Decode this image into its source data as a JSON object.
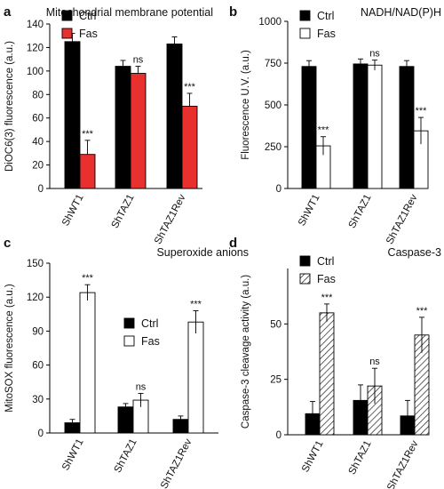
{
  "chart_data": [
    {
      "type": "bar",
      "panel": "a",
      "title": "Mitochondrial membrane potential",
      "ylabel": "DiOC6(3) fluorescence (a.u.)",
      "xlabel": "",
      "ylim": [
        0,
        140
      ],
      "yticks": [
        0,
        20,
        40,
        60,
        80,
        100,
        120,
        140
      ],
      "grid": false,
      "legend_position": "top-left",
      "categories": [
        "ShWT1",
        "ShTAZ1",
        "ShTAZ1Rev"
      ],
      "series": [
        {
          "name": "Ctrl",
          "color": "#000000",
          "pattern": "solid",
          "values": [
            125,
            104,
            123
          ],
          "errors": [
            7,
            5,
            6
          ]
        },
        {
          "name": "Fas",
          "color": "#e8312e",
          "pattern": "solid",
          "values": [
            29,
            98,
            70
          ],
          "errors": [
            12,
            6,
            11
          ]
        }
      ],
      "annotations": [
        {
          "category": "ShWT1",
          "series": "Fas",
          "text": "***"
        },
        {
          "category": "ShTAZ1",
          "series": "Fas",
          "text": "ns"
        },
        {
          "category": "ShTAZ1Rev",
          "series": "Fas",
          "text": "***"
        }
      ]
    },
    {
      "type": "bar",
      "panel": "b",
      "title": "NADH/NAD(P)H",
      "ylabel": "Fluorescence U.V. (a.u.)",
      "xlabel": "",
      "ylim": [
        0,
        1000
      ],
      "yticks": [
        0,
        250,
        500,
        750,
        1000
      ],
      "grid": false,
      "legend_position": "top-left",
      "categories": [
        "ShWT1",
        "ShTAZ1",
        "ShTAZ1Rev"
      ],
      "series": [
        {
          "name": "Ctrl",
          "color": "#000000",
          "pattern": "solid",
          "values": [
            730,
            745,
            730
          ],
          "errors": [
            35,
            30,
            35
          ]
        },
        {
          "name": "Fas",
          "color": "#ffffff",
          "pattern": "open",
          "values": [
            255,
            738,
            345
          ],
          "errors": [
            55,
            30,
            80
          ]
        }
      ],
      "annotations": [
        {
          "category": "ShWT1",
          "series": "Fas",
          "text": "***"
        },
        {
          "category": "ShTAZ1",
          "series": "Fas",
          "text": "ns"
        },
        {
          "category": "ShTAZ1Rev",
          "series": "Fas",
          "text": "***"
        }
      ]
    },
    {
      "type": "bar",
      "panel": "c",
      "title": "Superoxide anions",
      "ylabel": "MitoSOX fluorescence (a.u.)",
      "xlabel": "",
      "ylim": [
        0,
        150
      ],
      "yticks": [
        0,
        30,
        60,
        90,
        120,
        150
      ],
      "grid": false,
      "legend_position": "center-right",
      "categories": [
        "ShWT1",
        "ShTAZ1",
        "ShTAZ1Rev"
      ],
      "series": [
        {
          "name": "Ctrl",
          "color": "#000000",
          "pattern": "solid",
          "values": [
            9,
            23,
            12
          ],
          "errors": [
            3,
            3,
            3
          ]
        },
        {
          "name": "Fas",
          "color": "#ffffff",
          "pattern": "open",
          "values": [
            124,
            29,
            98
          ],
          "errors": [
            7,
            6,
            10
          ]
        }
      ],
      "annotations": [
        {
          "category": "ShWT1",
          "series": "Fas",
          "text": "***"
        },
        {
          "category": "ShTAZ1",
          "series": "Fas",
          "text": "ns"
        },
        {
          "category": "ShTAZ1Rev",
          "series": "Fas",
          "text": "***"
        }
      ]
    },
    {
      "type": "bar",
      "panel": "d",
      "title": "Caspase-3",
      "ylabel": "Caspase-3 cleavage activity (a.u.)",
      "xlabel": "",
      "ylim": [
        0,
        75
      ],
      "yticks": [
        0,
        25,
        50
      ],
      "grid": false,
      "legend_position": "top-left",
      "categories": [
        "ShWT1",
        "ShTAZ1",
        "ShTAZ1Rev"
      ],
      "series": [
        {
          "name": "Ctrl",
          "color": "#000000",
          "pattern": "solid",
          "values": [
            9.5,
            15.5,
            8.5
          ],
          "errors": [
            5.5,
            7,
            7
          ]
        },
        {
          "name": "Fas",
          "color": "#ffffff",
          "pattern": "hatched",
          "values": [
            55,
            22,
            45
          ],
          "errors": [
            4,
            8,
            8
          ]
        }
      ],
      "annotations": [
        {
          "category": "ShWT1",
          "series": "Fas",
          "text": "***"
        },
        {
          "category": "ShTAZ1",
          "series": "Fas",
          "text": "ns"
        },
        {
          "category": "ShTAZ1Rev",
          "series": "Fas",
          "text": "***"
        }
      ]
    }
  ]
}
